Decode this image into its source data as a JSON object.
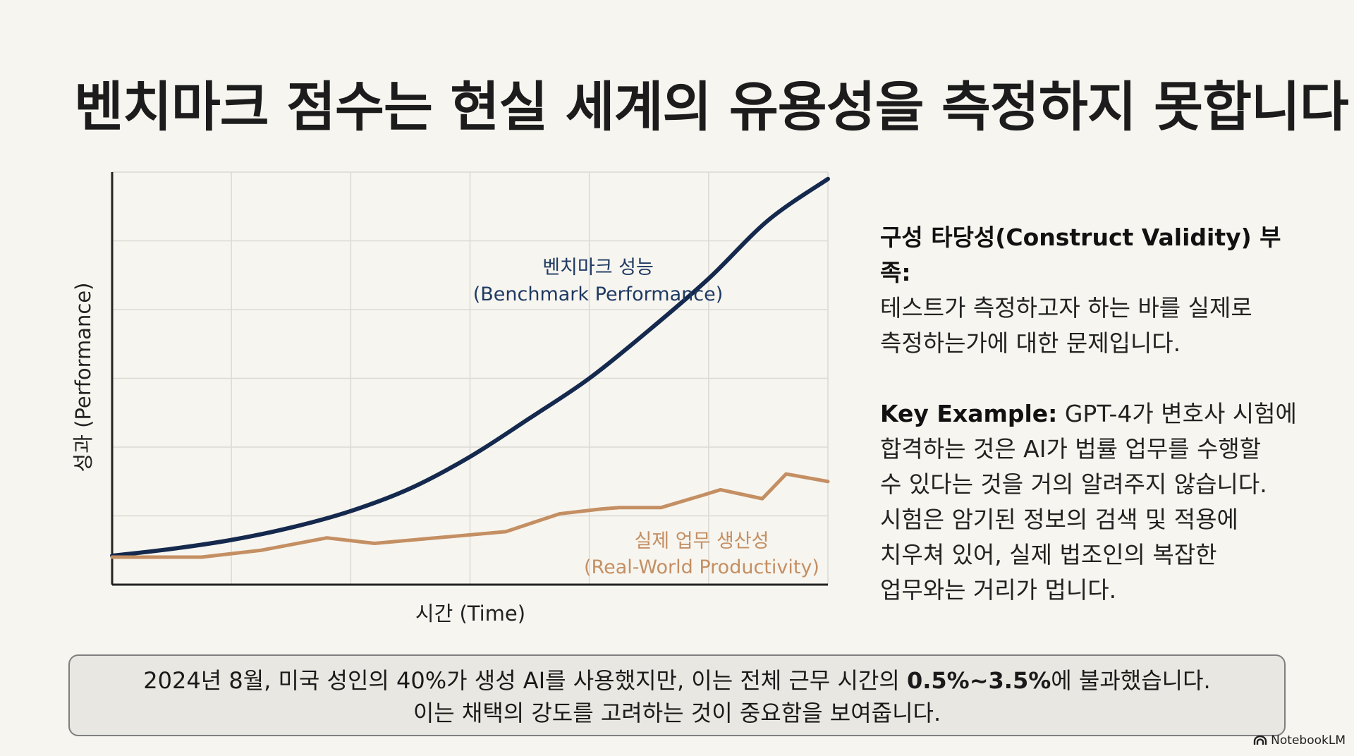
{
  "title": "벤치마크 점수는 현실 세계의 유용성을 측정하지 못합니다",
  "chart_data": {
    "type": "line",
    "xlabel": "시간 (Time)",
    "ylabel": "성과 (Performance)",
    "grid": true,
    "xlim": [
      0,
      6
    ],
    "ylim": [
      0,
      6
    ],
    "series": [
      {
        "name_ko": "벤치마크 성능",
        "name_en": "(Benchmark Performance)",
        "color": "#14294d",
        "x": [
          0,
          0.5,
          1,
          1.5,
          2,
          2.5,
          3,
          3.5,
          4,
          4.5,
          5,
          5.5,
          6
        ],
        "y": [
          0.42,
          0.52,
          0.65,
          0.83,
          1.07,
          1.4,
          1.86,
          2.42,
          3.0,
          3.7,
          4.45,
          5.3,
          5.9
        ]
      },
      {
        "name_ko": "실제 업무 생산성",
        "name_en": "(Real-World Productivity)",
        "color": "#c48f63",
        "x": [
          0,
          0.75,
          1.25,
          1.8,
          2.2,
          2.65,
          3.3,
          3.75,
          4.1,
          4.25,
          4.6,
          4.95,
          5.1,
          5.45,
          5.65,
          6
        ],
        "y": [
          0.4,
          0.4,
          0.5,
          0.68,
          0.6,
          0.67,
          0.77,
          1.03,
          1.1,
          1.12,
          1.12,
          1.3,
          1.38,
          1.25,
          1.61,
          1.5
        ]
      }
    ]
  },
  "right_panel": {
    "p1_bold": "구성 타당성(Construct Validity) 부족:",
    "p1_line1": "테스트가 측정하고자 하는 바를 실제로",
    "p1_line2": "측정하는가에 대한 문제입니다.",
    "p2_bold": "Key Example:",
    "p2_line1": " GPT-4가 변호사 시험에",
    "p2_line2": "합격하는 것은 AI가 법률 업무를 수행할",
    "p2_line3": "수 있다는 것을 거의 알려주지 않습니다.",
    "p2_line4": "시험은 암기된 정보의 검색 및 적용에",
    "p2_line5": "치우쳐 있어, 실제 법조인의 복잡한",
    "p2_line6": "업무와는 거리가 멉니다."
  },
  "footer": {
    "line1_prefix": "2024년 8월, 미국 성인의 40%가 생성 AI를 사용했지만, 이는 전체 근무 시간의 ",
    "line1_bold": "0.5%~3.5%",
    "line1_suffix": "에 불과했습니다.",
    "line2": "이는 채택의 강도를 고려하는 것이 중요함을 보여줍니다."
  },
  "brand": "NotebookLM"
}
